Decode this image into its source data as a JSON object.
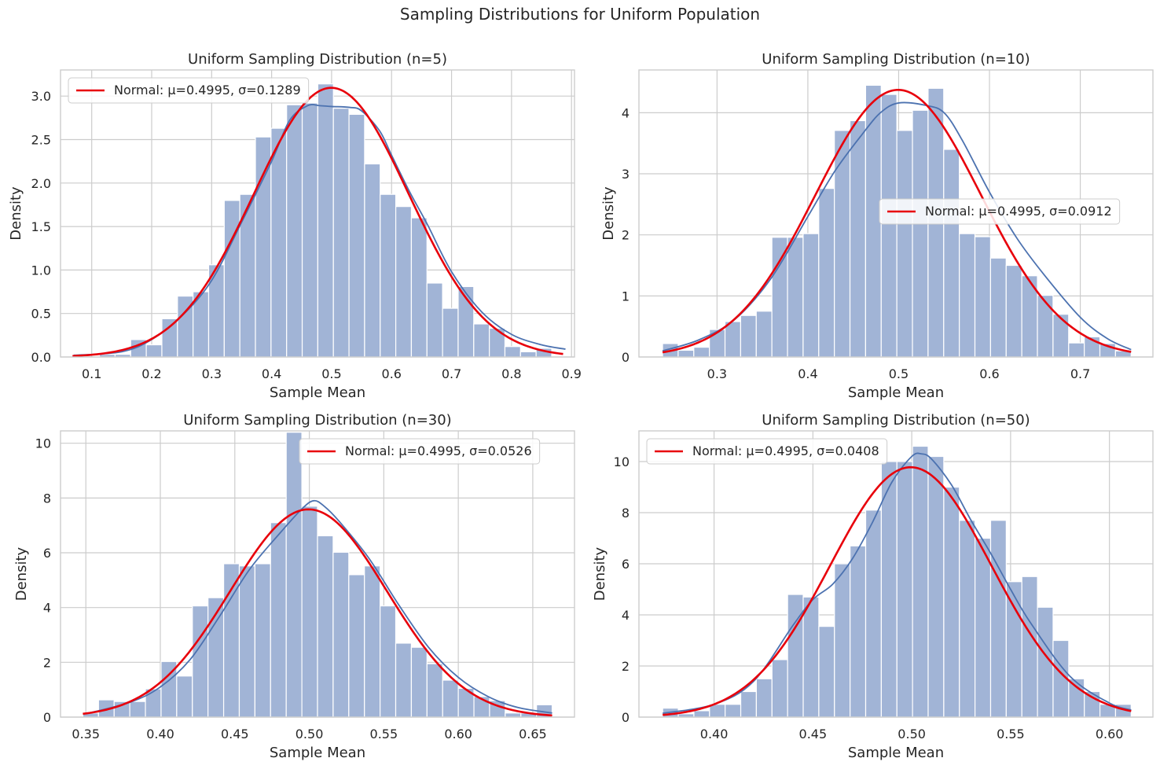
{
  "figure": {
    "suptitle": "Sampling Distributions for Uniform Population"
  },
  "colors": {
    "bar_fill": "#a1b4d6",
    "bar_edge": "#ffffff",
    "kde_line": "#4c72b0",
    "normal_line": "#e8000b",
    "grid": "#cccccc",
    "text": "#262626"
  },
  "chart_data": [
    {
      "type": "bar",
      "title": "Uniform Sampling Distribution (n=5)",
      "xlabel": "Sample Mean",
      "ylabel": "Density",
      "xlim": [
        0.048,
        0.905
      ],
      "ylim": [
        0,
        3.3
      ],
      "xticks": [
        0.1,
        0.2,
        0.3,
        0.4,
        0.5,
        0.6,
        0.7,
        0.8,
        0.9
      ],
      "xtick_labels": [
        "0.1",
        "0.2",
        "0.3",
        "0.4",
        "0.5",
        "0.6",
        "0.7",
        "0.8",
        "0.9"
      ],
      "yticks": [
        0.0,
        0.5,
        1.0,
        1.5,
        2.0,
        2.5,
        3.0
      ],
      "ytick_labels": [
        "0.0",
        "0.5",
        "1.0",
        "1.5",
        "2.0",
        "2.5",
        "3.0"
      ],
      "grid": true,
      "legend_position": "upper-left",
      "bin_edges": [
        0.113,
        0.139,
        0.165,
        0.191,
        0.217,
        0.243,
        0.269,
        0.295,
        0.321,
        0.347,
        0.373,
        0.399,
        0.425,
        0.451,
        0.477,
        0.503,
        0.529,
        0.555,
        0.581,
        0.607,
        0.633,
        0.659,
        0.685,
        0.711,
        0.737,
        0.763,
        0.789,
        0.815,
        0.841,
        0.867,
        0.893
      ],
      "densities": [
        0.03,
        0.03,
        0.2,
        0.14,
        0.44,
        0.7,
        0.75,
        1.06,
        1.8,
        1.87,
        2.53,
        2.63,
        2.9,
        2.92,
        3.14,
        2.86,
        2.79,
        2.22,
        1.87,
        1.73,
        1.6,
        0.85,
        0.56,
        0.81,
        0.38,
        0.33,
        0.12,
        0.06,
        0.1,
        0.0
      ],
      "kde_x": [
        0.07,
        0.15,
        0.2,
        0.25,
        0.3,
        0.35,
        0.4,
        0.43,
        0.46,
        0.48,
        0.5,
        0.53,
        0.55,
        0.58,
        0.6,
        0.63,
        0.66,
        0.7,
        0.75,
        0.8,
        0.85,
        0.89
      ],
      "kde_y": [
        0.02,
        0.06,
        0.2,
        0.47,
        0.88,
        1.55,
        2.25,
        2.72,
        2.89,
        2.89,
        2.88,
        2.87,
        2.83,
        2.6,
        2.32,
        1.9,
        1.52,
        0.98,
        0.52,
        0.26,
        0.14,
        0.09
      ],
      "series": [
        {
          "name": "Normal: μ=0.4995, σ=0.1289",
          "mu": 0.4995,
          "sigma": 0.1289,
          "x_range": [
            0.068,
            0.886
          ]
        }
      ]
    },
    {
      "type": "bar",
      "title": "Uniform Sampling Distribution (n=10)",
      "xlabel": "Sample Mean",
      "ylabel": "Density",
      "xlim": [
        0.214,
        0.78
      ],
      "ylim": [
        0,
        4.7
      ],
      "xticks": [
        0.3,
        0.4,
        0.5,
        0.6,
        0.7
      ],
      "xtick_labels": [
        "0.3",
        "0.4",
        "0.5",
        "0.6",
        "0.7"
      ],
      "yticks": [
        0,
        1,
        2,
        3,
        4
      ],
      "ytick_labels": [
        "0",
        "1",
        "2",
        "3",
        "4"
      ],
      "grid": true,
      "legend_position": "center-right",
      "bin_edges": [
        0.24,
        0.2572,
        0.2744,
        0.2916,
        0.3088,
        0.326,
        0.3432,
        0.3604,
        0.3776,
        0.3948,
        0.412,
        0.4292,
        0.4464,
        0.4636,
        0.4808,
        0.498,
        0.5152,
        0.5324,
        0.5496,
        0.5668,
        0.584,
        0.6012,
        0.6184,
        0.6356,
        0.6528,
        0.67,
        0.6872,
        0.7044,
        0.7216,
        0.7388,
        0.756
      ],
      "densities": [
        0.22,
        0.11,
        0.16,
        0.45,
        0.58,
        0.68,
        0.75,
        1.96,
        1.96,
        2.02,
        2.76,
        3.71,
        3.87,
        4.45,
        4.3,
        3.71,
        4.04,
        4.4,
        3.4,
        2.02,
        1.97,
        1.62,
        1.5,
        1.33,
        1.01,
        0.7,
        0.23,
        0.33,
        0.22,
        0.1
      ],
      "kde_x": [
        0.24,
        0.28,
        0.32,
        0.36,
        0.4,
        0.43,
        0.46,
        0.48,
        0.5,
        0.53,
        0.55,
        0.57,
        0.6,
        0.63,
        0.66,
        0.7,
        0.73,
        0.756
      ],
      "kde_y": [
        0.1,
        0.28,
        0.62,
        1.3,
        2.3,
        3.05,
        3.65,
        4.0,
        4.16,
        4.12,
        4.0,
        3.55,
        2.7,
        1.95,
        1.35,
        0.65,
        0.3,
        0.12
      ],
      "series": [
        {
          "name": "Normal: μ=0.4995, σ=0.0912",
          "mu": 0.4995,
          "sigma": 0.0912,
          "x_range": [
            0.24,
            0.756
          ]
        }
      ]
    },
    {
      "type": "bar",
      "title": "Uniform Sampling Distribution (n=30)",
      "xlabel": "Sample Mean",
      "ylabel": "Density",
      "xlim": [
        0.333,
        0.678
      ],
      "ylim": [
        0,
        10.45
      ],
      "xticks": [
        0.35,
        0.4,
        0.45,
        0.5,
        0.55,
        0.6,
        0.65
      ],
      "xtick_labels": [
        "0.35",
        "0.40",
        "0.45",
        "0.50",
        "0.55",
        "0.60",
        "0.65"
      ],
      "yticks": [
        0,
        2,
        4,
        6,
        8,
        10
      ],
      "ytick_labels": [
        "0",
        "2",
        "4",
        "6",
        "8",
        "10"
      ],
      "grid": true,
      "legend_position": "upper-right",
      "bin_edges": [
        0.348,
        0.3585,
        0.369,
        0.3795,
        0.39,
        0.4005,
        0.411,
        0.4215,
        0.432,
        0.4425,
        0.453,
        0.4635,
        0.474,
        0.4845,
        0.495,
        0.5055,
        0.516,
        0.5265,
        0.537,
        0.5475,
        0.558,
        0.5685,
        0.579,
        0.5895,
        0.6,
        0.6105,
        0.621,
        0.6315,
        0.642,
        0.6525,
        0.663
      ],
      "densities": [
        0.15,
        0.63,
        0.57,
        0.57,
        1.03,
        2.03,
        1.5,
        4.06,
        4.36,
        5.6,
        5.52,
        5.6,
        7.1,
        10.4,
        7.7,
        6.62,
        6.02,
        5.2,
        5.52,
        4.06,
        2.7,
        2.55,
        1.95,
        1.35,
        1.05,
        0.75,
        0.6,
        0.15,
        0.15,
        0.45
      ],
      "kde_x": [
        0.35,
        0.38,
        0.4,
        0.42,
        0.44,
        0.46,
        0.48,
        0.495,
        0.503,
        0.51,
        0.52,
        0.54,
        0.56,
        0.58,
        0.6,
        0.62,
        0.64,
        0.663
      ],
      "kde_y": [
        0.12,
        0.55,
        1.1,
        2.1,
        3.7,
        5.4,
        6.7,
        7.6,
        7.9,
        7.7,
        7.15,
        5.8,
        4.1,
        2.55,
        1.45,
        0.75,
        0.35,
        0.15
      ],
      "series": [
        {
          "name": "Normal: μ=0.4995, σ=0.0526",
          "mu": 0.4995,
          "sigma": 0.0526,
          "x_range": [
            0.348,
            0.663
          ]
        }
      ]
    },
    {
      "type": "bar",
      "title": "Uniform Sampling Distribution (n=50)",
      "xlabel": "Sample Mean",
      "ylabel": "Density",
      "xlim": [
        0.362,
        0.622
      ],
      "ylim": [
        0,
        11.2
      ],
      "xticks": [
        0.4,
        0.45,
        0.5,
        0.55,
        0.6
      ],
      "xtick_labels": [
        "0.40",
        "0.45",
        "0.50",
        "0.55",
        "0.60"
      ],
      "yticks": [
        0,
        2,
        4,
        6,
        8,
        10
      ],
      "ytick_labels": [
        "0",
        "2",
        "4",
        "6",
        "8",
        "10"
      ],
      "grid": true,
      "legend_position": "upper-left",
      "bin_edges": [
        0.374,
        0.3819,
        0.3898,
        0.3977,
        0.4056,
        0.4135,
        0.4214,
        0.4293,
        0.4372,
        0.4451,
        0.453,
        0.4609,
        0.4688,
        0.4767,
        0.4846,
        0.4925,
        0.5004,
        0.5083,
        0.5162,
        0.5241,
        0.532,
        0.5399,
        0.5478,
        0.5557,
        0.5636,
        0.5715,
        0.5794,
        0.5873,
        0.5952,
        0.6031,
        0.611
      ],
      "densities": [
        0.35,
        0.13,
        0.25,
        0.5,
        0.5,
        1.0,
        1.5,
        2.25,
        4.8,
        4.7,
        3.55,
        6.0,
        6.7,
        8.1,
        10.0,
        10.0,
        10.6,
        10.2,
        9.0,
        7.7,
        7.0,
        7.7,
        5.3,
        5.5,
        4.3,
        3.0,
        1.5,
        1.0,
        0.5,
        0.5
      ],
      "kde_x": [
        0.374,
        0.4,
        0.42,
        0.44,
        0.45,
        0.46,
        0.47,
        0.48,
        0.49,
        0.5,
        0.505,
        0.51,
        0.52,
        0.53,
        0.54,
        0.55,
        0.56,
        0.58,
        0.6,
        0.611
      ],
      "kde_y": [
        0.15,
        0.5,
        1.4,
        3.6,
        4.6,
        5.2,
        6.2,
        7.6,
        9.2,
        10.2,
        10.3,
        10.1,
        9.1,
        7.7,
        6.4,
        5.0,
        3.7,
        1.6,
        0.55,
        0.28
      ],
      "series": [
        {
          "name": "Normal: μ=0.4995, σ=0.0408",
          "mu": 0.4995,
          "sigma": 0.0408,
          "x_range": [
            0.374,
            0.611
          ]
        }
      ]
    }
  ]
}
